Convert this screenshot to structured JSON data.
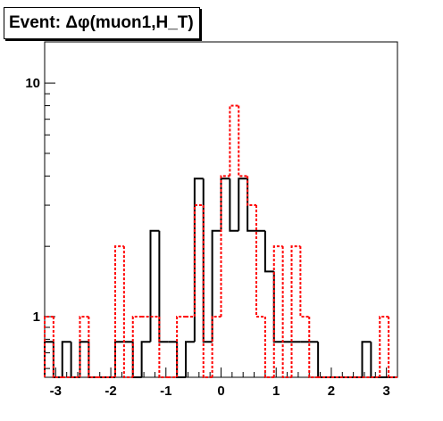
{
  "chart_data": {
    "type": "histogram",
    "title": "Event: Δφ(muon1,H_T)",
    "xlim": [
      -3.2,
      3.2
    ],
    "ylim": [
      0.55,
      15
    ],
    "y_scale": "log",
    "grid": false,
    "x_ticks": [
      -3,
      -2,
      -1,
      0,
      1,
      2,
      3
    ],
    "y_ticks": [
      1,
      10
    ],
    "bin_edges": [
      -3.2,
      -3.04,
      -2.88,
      -2.72,
      -2.56,
      -2.4,
      -2.24,
      -2.08,
      -1.92,
      -1.76,
      -1.6,
      -1.44,
      -1.28,
      -1.12,
      -0.96,
      -0.8,
      -0.64,
      -0.48,
      -0.32,
      -0.16,
      0.0,
      0.16,
      0.32,
      0.48,
      0.64,
      0.8,
      0.96,
      1.12,
      1.28,
      1.44,
      1.6,
      1.76,
      1.92,
      2.08,
      2.24,
      2.4,
      2.56,
      2.72,
      2.88,
      3.04,
      3.2
    ],
    "series": [
      {
        "color": "#000000",
        "style": "solid",
        "values": [
          0.78,
          0,
          0.78,
          0,
          0.78,
          0,
          0,
          0,
          0.78,
          0.78,
          0,
          0.78,
          2.33,
          0.78,
          0.78,
          0,
          0.78,
          3.9,
          0.78,
          2.33,
          3.9,
          2.33,
          3.9,
          2.33,
          2.33,
          1.56,
          0.78,
          0.78,
          0.78,
          0.78,
          0.78,
          0,
          0,
          0,
          0,
          0,
          0.78,
          0,
          0,
          0
        ]
      },
      {
        "color": "#ff0000",
        "style": "dotted",
        "values": [
          1,
          0,
          0,
          0,
          1,
          0,
          0,
          0,
          2,
          0,
          1,
          1,
          1,
          0,
          0,
          1,
          1,
          3,
          0,
          1,
          4,
          8,
          4,
          3,
          1,
          0,
          2,
          0,
          2,
          1,
          0,
          0,
          0,
          0,
          0,
          0,
          0,
          0,
          1,
          0
        ]
      }
    ]
  },
  "colors": {
    "hist_black": "#000000",
    "hist_red": "#ff0000",
    "frame": "#000000"
  }
}
